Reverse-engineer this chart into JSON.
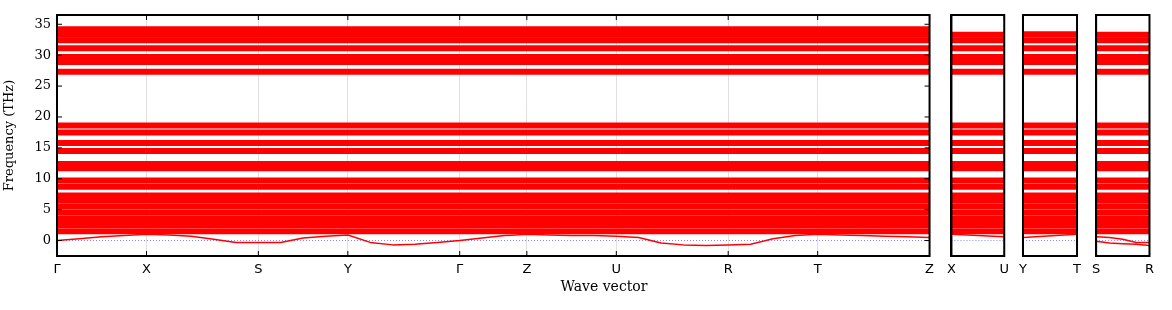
{
  "chart_data": [
    {
      "type": "line",
      "xlabel": "Wave vector",
      "ylabel": "Frequency (THz)",
      "categories": [
        "Γ",
        null,
        null,
        null,
        "X",
        null,
        null,
        null,
        null,
        "S",
        null,
        null,
        null,
        "Y",
        null,
        null,
        null,
        null,
        "Γ",
        null,
        null,
        "Z",
        null,
        null,
        null,
        "U",
        null,
        null,
        null,
        null,
        "R",
        null,
        null,
        null,
        "T",
        null,
        null,
        null,
        null,
        "Z"
      ],
      "ylim": [
        -2.5,
        36.5
      ],
      "yticks": [
        0,
        5,
        10,
        15,
        20,
        25,
        30,
        35
      ],
      "grid": "x",
      "ref_lines": [
        {
          "axis": "y",
          "value": 0,
          "color": "#8080ff",
          "line_style": "dotted"
        }
      ],
      "series": [
        {
          "color": "#ff0000",
          "values": [
            0,
            0.3,
            0.6,
            0.8,
            1.0,
            0.9,
            0.7,
            0.2,
            -0.3,
            -0.3,
            -0.3,
            0.4,
            0.7,
            0.9,
            -0.3,
            -0.7,
            -0.6,
            -0.3,
            0,
            0.4,
            0.8,
            1.0,
            0.9,
            0.8,
            0.8,
            0.7,
            0.5,
            -0.4,
            -0.7,
            -0.8,
            -0.7,
            -0.6,
            0.3,
            0.8,
            1.0,
            0.9,
            0.8,
            0.7,
            0.6,
            0.5
          ]
        },
        {
          "color": "#ff0000",
          "values": [
            1.5,
            1.5,
            1.5,
            1.5,
            1.5,
            1.5,
            1.5,
            1.5,
            1.5,
            1.5,
            1.5,
            1.5,
            1.5,
            1.5,
            1.5,
            1.5,
            1.5,
            1.5,
            1.5,
            1.5,
            1.5,
            1.5,
            1.5,
            1.5,
            1.5,
            1.5,
            1.5,
            1.5,
            1.5,
            1.5,
            1.5,
            1.5,
            1.5,
            1.5,
            1.5,
            1.5,
            1.5,
            1.5,
            1.5,
            1.5
          ]
        },
        {
          "color": "#ff0000",
          "values": [
            2.5,
            2.5,
            2.5,
            2.5,
            2.5,
            2.5,
            2.5,
            2.5,
            2.5,
            2.5,
            2.5,
            2.5,
            2.5,
            2.5,
            2.5,
            2.5,
            2.5,
            2.5,
            2.5,
            2.5,
            2.5,
            2.5,
            2.5,
            2.5,
            2.5,
            2.5,
            2.5,
            2.5,
            2.5,
            2.5,
            2.5,
            2.5,
            2.5,
            2.5,
            2.5,
            2.5,
            2.5,
            2.5,
            2.5,
            2.5
          ]
        },
        {
          "color": "#ff0000",
          "values": [
            3.5,
            3.5,
            3.5,
            3.5,
            3.5,
            3.5,
            3.5,
            3.5,
            3.5,
            3.5,
            3.5,
            3.5,
            3.5,
            3.5,
            3.5,
            3.5,
            3.5,
            3.5,
            3.5,
            3.5,
            3.5,
            3.5,
            3.5,
            3.5,
            3.5,
            3.5,
            3.5,
            3.5,
            3.5,
            3.5,
            3.5,
            3.5,
            3.5,
            3.5,
            3.5,
            3.5,
            3.5,
            3.5,
            3.5,
            3.5
          ]
        },
        {
          "color": "#ff0000",
          "values": [
            4.5,
            4.5,
            4.5,
            4.5,
            4.5,
            4.5,
            4.5,
            4.5,
            4.5,
            4.5,
            4.5,
            4.5,
            4.5,
            4.5,
            4.5,
            4.5,
            4.5,
            4.5,
            4.5,
            4.5,
            4.5,
            4.5,
            4.5,
            4.5,
            4.5,
            4.5,
            4.5,
            4.5,
            4.5,
            4.5,
            4.5,
            4.5,
            4.5,
            4.5,
            4.5,
            4.5,
            4.5,
            4.5,
            4.5,
            4.5
          ]
        },
        {
          "color": "#ff0000",
          "values": [
            5.5,
            5.5,
            5.5,
            5.5,
            5.5,
            5.5,
            5.5,
            5.5,
            5.5,
            5.5,
            5.5,
            5.5,
            5.5,
            5.5,
            5.5,
            5.5,
            5.5,
            5.5,
            5.5,
            5.5,
            5.5,
            5.5,
            5.5,
            5.5,
            5.5,
            5.5,
            5.5,
            5.5,
            5.5,
            5.5,
            5.5,
            5.5,
            5.5,
            5.5,
            5.5,
            5.5,
            5.5,
            5.5,
            5.5,
            5.5
          ]
        },
        {
          "color": "#ff0000",
          "values": [
            6.5,
            6.5,
            6.5,
            6.5,
            6.5,
            6.5,
            6.5,
            6.5,
            6.5,
            6.5,
            6.5,
            6.5,
            6.5,
            6.5,
            6.5,
            6.5,
            6.5,
            6.5,
            6.5,
            6.5,
            6.5,
            6.5,
            6.5,
            6.5,
            6.5,
            6.5,
            6.5,
            6.5,
            6.5,
            6.5,
            6.5,
            6.5,
            6.5,
            6.5,
            6.5,
            6.5,
            6.5,
            6.5,
            6.5,
            6.5
          ]
        },
        {
          "color": "#ff0000",
          "values": [
            7.3,
            7.3,
            7.3,
            7.3,
            7.3,
            7.3,
            7.3,
            7.3,
            7.3,
            7.3,
            7.3,
            7.3,
            7.3,
            7.3,
            7.3,
            7.3,
            7.3,
            7.3,
            7.3,
            7.3,
            7.3,
            7.3,
            7.3,
            7.3,
            7.3,
            7.3,
            7.3,
            7.3,
            7.3,
            7.3,
            7.3,
            7.3,
            7.3,
            7.3,
            7.3,
            7.3,
            7.3,
            7.3,
            7.3,
            7.3
          ]
        },
        {
          "color": "#ff0000",
          "values": [
            8.7,
            8.7,
            8.7,
            8.7,
            8.7,
            8.7,
            8.7,
            8.7,
            8.7,
            8.7,
            8.7,
            8.7,
            8.7,
            8.7,
            8.7,
            8.7,
            8.7,
            8.7,
            8.7,
            8.7,
            8.7,
            8.7,
            8.7,
            8.7,
            8.7,
            8.7,
            8.7,
            8.7,
            8.7,
            8.7,
            8.7,
            8.7,
            8.7,
            8.7,
            8.7,
            8.7,
            8.7,
            8.7,
            8.7,
            8.7
          ]
        },
        {
          "color": "#ff0000",
          "values": [
            9.7,
            9.7,
            9.7,
            9.7,
            9.7,
            9.7,
            9.7,
            9.7,
            9.7,
            9.7,
            9.7,
            9.7,
            9.7,
            9.7,
            9.7,
            9.7,
            9.7,
            9.7,
            9.7,
            9.7,
            9.7,
            9.7,
            9.7,
            9.7,
            9.7,
            9.7,
            9.7,
            9.7,
            9.7,
            9.7,
            9.7,
            9.7,
            9.7,
            9.7,
            9.7,
            9.7,
            9.7,
            9.7,
            9.7,
            9.7
          ]
        },
        {
          "color": "#ff0000",
          "values": [
            11.7,
            11.7,
            11.7,
            11.7,
            11.7,
            11.7,
            11.7,
            11.7,
            11.7,
            11.7,
            11.7,
            11.7,
            11.7,
            11.7,
            11.7,
            11.7,
            11.7,
            11.7,
            11.7,
            11.7,
            11.7,
            11.7,
            11.7,
            11.7,
            11.7,
            11.7,
            11.7,
            11.7,
            11.7,
            11.7,
            11.7,
            11.7,
            11.7,
            11.7,
            11.7,
            11.7,
            11.7,
            11.7,
            11.7,
            11.7
          ]
        },
        {
          "color": "#ff0000",
          "values": [
            12.4,
            12.4,
            12.4,
            12.4,
            12.4,
            12.4,
            12.4,
            12.4,
            12.4,
            12.4,
            12.4,
            12.4,
            12.4,
            12.4,
            12.4,
            12.4,
            12.4,
            12.4,
            12.4,
            12.4,
            12.4,
            12.4,
            12.4,
            12.4,
            12.4,
            12.4,
            12.4,
            12.4,
            12.4,
            12.4,
            12.4,
            12.4,
            12.4,
            12.4,
            12.4,
            12.4,
            12.4,
            12.4,
            12.4,
            12.4
          ]
        },
        {
          "color": "#ff0000",
          "values": [
            14.5,
            14.5,
            14.5,
            14.5,
            14.5,
            14.5,
            14.5,
            14.5,
            14.5,
            14.5,
            14.5,
            14.5,
            14.5,
            14.5,
            14.5,
            14.5,
            14.5,
            14.5,
            14.5,
            14.5,
            14.5,
            14.5,
            14.5,
            14.5,
            14.5,
            14.5,
            14.5,
            14.5,
            14.5,
            14.5,
            14.5,
            14.5,
            14.5,
            14.5,
            14.5,
            14.5,
            14.5,
            14.5,
            14.5,
            14.5
          ]
        },
        {
          "color": "#ff0000",
          "values": [
            15.8,
            15.8,
            15.8,
            15.8,
            15.8,
            15.8,
            15.8,
            15.8,
            15.8,
            15.8,
            15.8,
            15.8,
            15.8,
            15.8,
            15.8,
            15.8,
            15.8,
            15.8,
            15.8,
            15.8,
            15.8,
            15.8,
            15.8,
            15.8,
            15.8,
            15.8,
            15.8,
            15.8,
            15.8,
            15.8,
            15.8,
            15.8,
            15.8,
            15.8,
            15.8,
            15.8,
            15.8,
            15.8,
            15.8,
            15.8
          ]
        },
        {
          "color": "#ff0000",
          "values": [
            17.5,
            17.5,
            17.5,
            17.5,
            17.5,
            17.5,
            17.5,
            17.5,
            17.5,
            17.5,
            17.5,
            17.5,
            17.5,
            17.5,
            17.5,
            17.5,
            17.5,
            17.5,
            17.5,
            17.5,
            17.5,
            17.5,
            17.5,
            17.5,
            17.5,
            17.5,
            17.5,
            17.5,
            17.5,
            17.5,
            17.5,
            17.5,
            17.5,
            17.5,
            17.5,
            17.5,
            17.5,
            17.5,
            17.5,
            17.5
          ]
        },
        {
          "color": "#ff0000",
          "values": [
            18.6,
            18.6,
            18.6,
            18.6,
            18.6,
            18.6,
            18.6,
            18.6,
            18.6,
            18.6,
            18.6,
            18.6,
            18.6,
            18.6,
            18.6,
            18.6,
            18.6,
            18.6,
            18.6,
            18.6,
            18.6,
            18.6,
            18.6,
            18.6,
            18.6,
            18.6,
            18.6,
            18.6,
            18.6,
            18.6,
            18.6,
            18.6,
            18.6,
            18.6,
            18.6,
            18.6,
            18.6,
            18.6,
            18.6,
            18.6
          ]
        },
        {
          "color": "#ff0000",
          "values": [
            27.3,
            27.3,
            27.3,
            27.3,
            27.3,
            27.3,
            27.3,
            27.3,
            27.3,
            27.3,
            27.3,
            27.3,
            27.3,
            27.3,
            27.3,
            27.3,
            27.3,
            27.3,
            27.3,
            27.3,
            27.3,
            27.3,
            27.3,
            27.3,
            27.3,
            27.3,
            27.3,
            27.3,
            27.3,
            27.3,
            27.3,
            27.3,
            27.3,
            27.3,
            27.3,
            27.3,
            27.3,
            27.3,
            27.3,
            27.3
          ]
        },
        {
          "color": "#ff0000",
          "values": [
            28.9,
            28.9,
            28.9,
            28.9,
            28.9,
            28.9,
            28.9,
            28.9,
            28.9,
            28.9,
            28.9,
            28.9,
            28.9,
            28.9,
            28.9,
            28.9,
            28.9,
            28.9,
            28.9,
            28.9,
            28.9,
            28.9,
            28.9,
            28.9,
            28.9,
            28.9,
            28.9,
            28.9,
            28.9,
            28.9,
            28.9,
            28.9,
            28.9,
            28.9,
            28.9,
            28.9,
            28.9,
            28.9,
            28.9,
            28.9
          ]
        },
        {
          "color": "#ff0000",
          "values": [
            29.7,
            29.7,
            29.7,
            29.7,
            29.7,
            29.7,
            29.7,
            29.7,
            29.7,
            29.7,
            29.7,
            29.7,
            29.7,
            29.7,
            29.7,
            29.7,
            29.7,
            29.7,
            29.7,
            29.7,
            29.7,
            29.7,
            29.7,
            29.7,
            29.7,
            29.7,
            29.7,
            29.7,
            29.7,
            29.7,
            29.7,
            29.7,
            29.7,
            29.7,
            29.7,
            29.7,
            29.7,
            29.7,
            29.7,
            29.7
          ]
        },
        {
          "color": "#ff0000",
          "values": [
            31.1,
            31.1,
            31.1,
            31.1,
            31.1,
            31.1,
            31.1,
            31.1,
            31.1,
            31.1,
            31.1,
            31.1,
            31.1,
            31.1,
            31.1,
            31.1,
            31.1,
            31.1,
            31.1,
            31.1,
            31.1,
            31.1,
            31.1,
            31.1,
            31.1,
            31.1,
            31.1,
            31.1,
            31.1,
            31.1,
            31.1,
            31.1,
            31.1,
            31.1,
            31.1,
            31.1,
            31.1,
            31.1,
            31.1,
            31.1
          ]
        },
        {
          "color": "#ff0000",
          "values": [
            32.4,
            32.4,
            32.4,
            32.4,
            32.4,
            32.4,
            32.4,
            32.4,
            32.4,
            32.4,
            32.4,
            32.4,
            32.4,
            32.4,
            32.4,
            32.4,
            32.4,
            32.4,
            32.4,
            32.4,
            32.4,
            32.4,
            32.4,
            32.4,
            32.4,
            32.4,
            32.4,
            32.4,
            32.4,
            32.4,
            32.4,
            32.4,
            32.4,
            32.4,
            32.4,
            32.4,
            32.4,
            32.4,
            32.4,
            32.4
          ]
        },
        {
          "color": "#ff0000",
          "values": [
            33.3,
            33.3,
            33.3,
            33.3,
            33.3,
            33.3,
            33.3,
            33.3,
            33.3,
            33.3,
            33.3,
            33.3,
            33.3,
            33.3,
            33.3,
            33.3,
            33.3,
            33.3,
            33.3,
            33.3,
            33.3,
            33.3,
            33.3,
            33.3,
            33.3,
            33.3,
            33.3,
            33.3,
            33.3,
            33.3,
            33.3,
            33.3,
            33.3,
            33.3,
            33.3,
            33.3,
            33.3,
            33.3,
            33.3,
            33.3
          ]
        },
        {
          "color": "#ff0000",
          "values": [
            34.2,
            34.2,
            34.2,
            34.2,
            34.2,
            34.2,
            34.2,
            34.2,
            34.2,
            34.2,
            34.2,
            34.2,
            34.2,
            34.2,
            34.2,
            34.2,
            34.2,
            34.2,
            34.2,
            34.2,
            34.2,
            34.2,
            34.2,
            34.2,
            34.2,
            34.2,
            34.2,
            34.2,
            34.2,
            34.2,
            34.2,
            34.2,
            34.2,
            34.2,
            34.2,
            34.2,
            34.2,
            34.2,
            34.2,
            34.2
          ]
        }
      ]
    },
    {
      "type": "line",
      "categories": [
        "X",
        "U"
      ],
      "ylim": [
        -2.5,
        36.5
      ],
      "tick_labels": "x",
      "ref_lines": [
        {
          "axis": "y",
          "value": 0,
          "color": "#8080ff",
          "line_style": "dotted"
        }
      ],
      "series": [
        {
          "color": "#ff0000",
          "values": [
            1.0,
            0.6
          ]
        },
        {
          "color": "#ff0000",
          "values": [
            1.5,
            1.5
          ]
        },
        {
          "color": "#ff0000",
          "values": [
            2.5,
            2.5
          ]
        },
        {
          "color": "#ff0000",
          "values": [
            3.5,
            3.5
          ]
        },
        {
          "color": "#ff0000",
          "values": [
            4.5,
            4.5
          ]
        },
        {
          "color": "#ff0000",
          "values": [
            5.5,
            5.5
          ]
        },
        {
          "color": "#ff0000",
          "values": [
            6.5,
            6.5
          ]
        },
        {
          "color": "#ff0000",
          "values": [
            7.3,
            7.3
          ]
        },
        {
          "color": "#ff0000",
          "values": [
            8.7,
            8.7
          ]
        },
        {
          "color": "#ff0000",
          "values": [
            9.7,
            9.7
          ]
        },
        {
          "color": "#ff0000",
          "values": [
            11.7,
            11.7
          ]
        },
        {
          "color": "#ff0000",
          "values": [
            12.4,
            12.4
          ]
        },
        {
          "color": "#ff0000",
          "values": [
            14.5,
            14.5
          ]
        },
        {
          "color": "#ff0000",
          "values": [
            15.8,
            15.8
          ]
        },
        {
          "color": "#ff0000",
          "values": [
            17.5,
            17.5
          ]
        },
        {
          "color": "#ff0000",
          "values": [
            18.6,
            18.6
          ]
        },
        {
          "color": "#ff0000",
          "values": [
            27.3,
            27.3
          ]
        },
        {
          "color": "#ff0000",
          "values": [
            28.9,
            28.9
          ]
        },
        {
          "color": "#ff0000",
          "values": [
            29.7,
            29.7
          ]
        },
        {
          "color": "#ff0000",
          "values": [
            31.1,
            31.1
          ]
        },
        {
          "color": "#ff0000",
          "values": [
            32.4,
            32.4
          ]
        },
        {
          "color": "#ff0000",
          "values": [
            33.3,
            33.3
          ]
        }
      ]
    },
    {
      "type": "line",
      "categories": [
        "Y",
        "T"
      ],
      "ylim": [
        -2.5,
        36.5
      ],
      "tick_labels": "x",
      "ref_lines": [
        {
          "axis": "y",
          "value": 0,
          "color": "#8080ff",
          "line_style": "dotted"
        }
      ],
      "series": [
        {
          "color": "#ff0000",
          "values": [
            0.5,
            1.0
          ]
        },
        {
          "color": "#ff0000",
          "values": [
            1.5,
            1.5
          ]
        },
        {
          "color": "#ff0000",
          "values": [
            2.5,
            2.5
          ]
        },
        {
          "color": "#ff0000",
          "values": [
            3.5,
            3.5
          ]
        },
        {
          "color": "#ff0000",
          "values": [
            4.5,
            4.5
          ]
        },
        {
          "color": "#ff0000",
          "values": [
            5.5,
            5.5
          ]
        },
        {
          "color": "#ff0000",
          "values": [
            6.5,
            6.5
          ]
        },
        {
          "color": "#ff0000",
          "values": [
            7.3,
            7.3
          ]
        },
        {
          "color": "#ff0000",
          "values": [
            8.7,
            8.7
          ]
        },
        {
          "color": "#ff0000",
          "values": [
            9.7,
            9.7
          ]
        },
        {
          "color": "#ff0000",
          "values": [
            11.7,
            11.7
          ]
        },
        {
          "color": "#ff0000",
          "values": [
            12.4,
            12.4
          ]
        },
        {
          "color": "#ff0000",
          "values": [
            14.5,
            14.5
          ]
        },
        {
          "color": "#ff0000",
          "values": [
            15.8,
            15.8
          ]
        },
        {
          "color": "#ff0000",
          "values": [
            17.5,
            17.5
          ]
        },
        {
          "color": "#ff0000",
          "values": [
            18.6,
            18.6
          ]
        },
        {
          "color": "#ff0000",
          "values": [
            27.3,
            27.3
          ]
        },
        {
          "color": "#ff0000",
          "values": [
            28.9,
            28.9
          ]
        },
        {
          "color": "#ff0000",
          "values": [
            29.7,
            29.7
          ]
        },
        {
          "color": "#ff0000",
          "values": [
            31.1,
            31.1
          ]
        },
        {
          "color": "#ff0000",
          "values": [
            32.4,
            32.4
          ]
        },
        {
          "color": "#ff0000",
          "values": [
            33.4,
            33.4
          ]
        }
      ]
    },
    {
      "type": "line",
      "categories": [
        "S",
        null,
        null,
        null,
        "R"
      ],
      "ylim": [
        -2.5,
        36.5
      ],
      "tick_labels": "x",
      "ref_lines": [
        {
          "axis": "y",
          "value": 0,
          "color": "#8080ff",
          "line_style": "dotted"
        }
      ],
      "series": [
        {
          "color": "#ff0000",
          "values": [
            -0.1,
            -0.4,
            -0.5,
            -0.6,
            -0.8
          ]
        },
        {
          "color": "#ff0000",
          "values": [
            0.6,
            0.5,
            0.2,
            -0.3,
            -0.3
          ]
        },
        {
          "color": "#ff0000",
          "values": [
            1.5,
            1.5,
            1.5,
            1.5,
            1.5
          ]
        },
        {
          "color": "#ff0000",
          "values": [
            2.5,
            2.5,
            2.5,
            2.5,
            2.5
          ]
        },
        {
          "color": "#ff0000",
          "values": [
            3.5,
            3.5,
            3.5,
            3.5,
            3.5
          ]
        },
        {
          "color": "#ff0000",
          "values": [
            4.5,
            4.5,
            4.5,
            4.5,
            4.5
          ]
        },
        {
          "color": "#ff0000",
          "values": [
            5.5,
            5.5,
            5.5,
            5.5,
            5.5
          ]
        },
        {
          "color": "#ff0000",
          "values": [
            6.5,
            6.5,
            6.5,
            6.5,
            6.5
          ]
        },
        {
          "color": "#ff0000",
          "values": [
            7.3,
            7.3,
            7.3,
            7.3,
            7.3
          ]
        },
        {
          "color": "#ff0000",
          "values": [
            8.7,
            8.7,
            8.7,
            8.7,
            8.7
          ]
        },
        {
          "color": "#ff0000",
          "values": [
            9.7,
            9.7,
            9.7,
            9.7,
            9.7
          ]
        },
        {
          "color": "#ff0000",
          "values": [
            11.7,
            11.7,
            11.7,
            11.7,
            11.7
          ]
        },
        {
          "color": "#ff0000",
          "values": [
            12.4,
            12.4,
            12.4,
            12.4,
            12.4
          ]
        },
        {
          "color": "#ff0000",
          "values": [
            14.5,
            14.5,
            14.5,
            14.5,
            14.5
          ]
        },
        {
          "color": "#ff0000",
          "values": [
            15.8,
            15.8,
            15.8,
            15.8,
            15.8
          ]
        },
        {
          "color": "#ff0000",
          "values": [
            17.5,
            17.5,
            17.5,
            17.5,
            17.5
          ]
        },
        {
          "color": "#ff0000",
          "values": [
            18.6,
            18.6,
            18.6,
            18.6,
            18.6
          ]
        },
        {
          "color": "#ff0000",
          "values": [
            27.3,
            27.3,
            27.3,
            27.3,
            27.3
          ]
        },
        {
          "color": "#ff0000",
          "values": [
            28.9,
            28.9,
            28.9,
            28.9,
            28.9
          ]
        },
        {
          "color": "#ff0000",
          "values": [
            29.7,
            29.7,
            29.7,
            29.7,
            29.7
          ]
        },
        {
          "color": "#ff0000",
          "values": [
            31.1,
            31.1,
            31.1,
            31.1,
            31.1
          ]
        },
        {
          "color": "#ff0000",
          "values": [
            32.4,
            32.4,
            32.4,
            32.4,
            32.4
          ]
        },
        {
          "color": "#ff0000",
          "values": [
            33.3,
            33.3,
            33.3,
            33.3,
            33.3
          ]
        }
      ]
    }
  ]
}
